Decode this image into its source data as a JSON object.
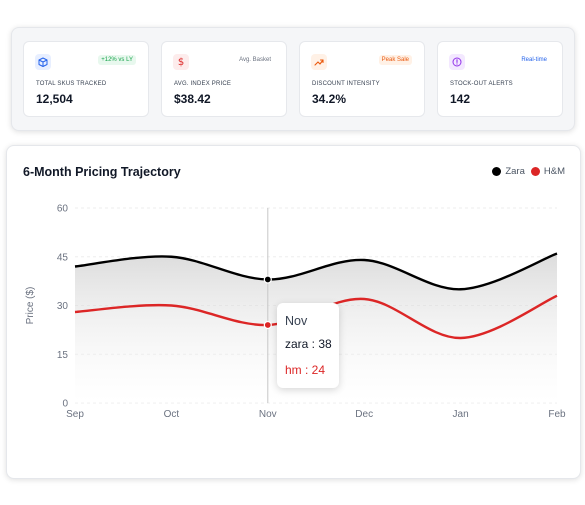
{
  "kpis": [
    {
      "label": "TOTAL SKUS TRACKED",
      "value": "12,504",
      "badge": "+12% vs LY",
      "icon": "cube-icon",
      "accent": "#2563eb",
      "icon_bg": "#e8efff",
      "badge_color": "#16a34a",
      "badge_bg": "#e8f8ee"
    },
    {
      "label": "AVG. INDEX PRICE",
      "value": "$38.42",
      "badge": "Avg. Basket",
      "icon": "dollar-icon",
      "accent": "#dc2626",
      "icon_bg": "#fdecec",
      "badge_color": "#6b7280",
      "badge_bg": "transparent"
    },
    {
      "label": "DISCOUNT INTENSITY",
      "value": "34.2%",
      "badge": "Peak Sale",
      "icon": "trending-up-icon",
      "accent": "#ea580c",
      "icon_bg": "#fff1e6",
      "badge_color": "#ea580c",
      "badge_bg": "#fff1e6"
    },
    {
      "label": "STOCK-OUT ALERTS",
      "value": "142",
      "badge": "Real-time",
      "icon": "alert-circle-icon",
      "accent": "#9333ea",
      "icon_bg": "#f3e8ff",
      "badge_color": "#2563eb",
      "badge_bg": "transparent"
    }
  ],
  "chart": {
    "title": "6-Month Pricing Trajectory",
    "legend": [
      {
        "name": "Zara",
        "color": "#000000"
      },
      {
        "name": "H&M",
        "color": "#dc2626"
      }
    ],
    "tooltip": {
      "title": "Nov",
      "lines": [
        {
          "text": "zara : 38",
          "color": "#111827"
        },
        {
          "text": "hm : 24",
          "color": "#dc2626"
        }
      ]
    }
  },
  "chart_data": {
    "type": "line",
    "title": "6-Month Pricing Trajectory",
    "xlabel": "",
    "ylabel": "Price ($)",
    "categories": [
      "Sep",
      "Oct",
      "Nov",
      "Dec",
      "Jan",
      "Feb"
    ],
    "series": [
      {
        "name": "Zara",
        "key": "zara",
        "color": "#000000",
        "values": [
          42,
          45,
          38,
          44,
          35,
          46
        ]
      },
      {
        "name": "H&M",
        "key": "hm",
        "color": "#dc2626",
        "values": [
          28,
          30,
          24,
          32,
          20,
          33
        ]
      }
    ],
    "ylim": [
      0,
      60
    ],
    "yticks": [
      0,
      15,
      30,
      45,
      60
    ],
    "grid": true,
    "legend_position": "top-right",
    "active_category": "Nov"
  }
}
